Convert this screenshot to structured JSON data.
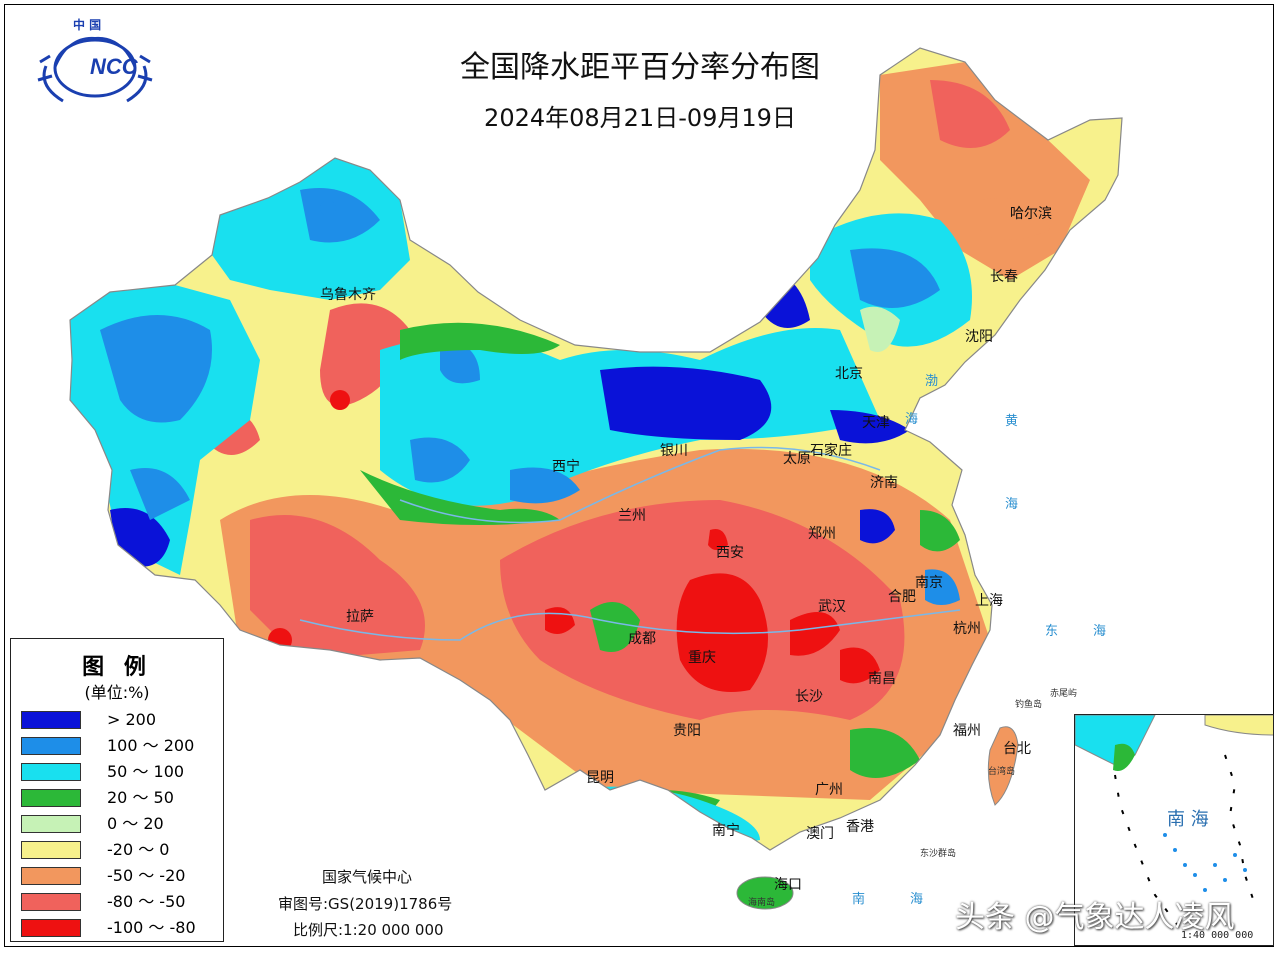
{
  "title": "全国降水距平百分率分布图",
  "date_range": "2024年08月21日-09月19日",
  "logo": {
    "top_text": "中 国",
    "main_text": "NCC"
  },
  "legend": {
    "title": "图 例",
    "unit": "(单位:%)",
    "items": [
      {
        "label": "> 200",
        "color": "#0a12d8"
      },
      {
        "label": "100 ～ 200",
        "color": "#1e8ee8"
      },
      {
        "label": "50 ～ 100",
        "color": "#19e0ef"
      },
      {
        "label": "20 ～ 50",
        "color": "#2cb838"
      },
      {
        "label": "0 ～ 20",
        "color": "#c6f2b6"
      },
      {
        "label": "-20 ～ 0",
        "color": "#f7f18c"
      },
      {
        "label": "-50 ～ -20",
        "color": "#f2975e"
      },
      {
        "label": "-80 ～ -50",
        "color": "#f0625c"
      },
      {
        "label": "-100 ～ -80",
        "color": "#ee1111"
      }
    ]
  },
  "credits": {
    "agency": "国家气候中心",
    "review_no": "审图号:GS(2019)1786号",
    "scale": "比例尺:1:20 000 000"
  },
  "cities": [
    "乌鲁木齐",
    "哈尔滨",
    "长春",
    "沈阳",
    "北京",
    "天津",
    "石家庄",
    "太原",
    "济南",
    "银川",
    "西宁",
    "兰州",
    "西安",
    "郑州",
    "南京",
    "合肥",
    "上海",
    "杭州",
    "武汉",
    "拉萨",
    "成都",
    "重庆",
    "南昌",
    "长沙",
    "福州",
    "台北",
    "贵阳",
    "昆明",
    "广州",
    "香港",
    "澳门",
    "南宁",
    "海口"
  ],
  "seas": [
    "渤",
    "海",
    "黄",
    "海",
    "东",
    "海",
    "南",
    "海"
  ],
  "islands": [
    "钓鱼岛",
    "赤尾屿",
    "台湾岛",
    "东沙群岛",
    "海南岛"
  ],
  "inset": {
    "label": "南 海",
    "scale": "1:40 000 000"
  },
  "watermark": "头条 @气象达人凌风"
}
